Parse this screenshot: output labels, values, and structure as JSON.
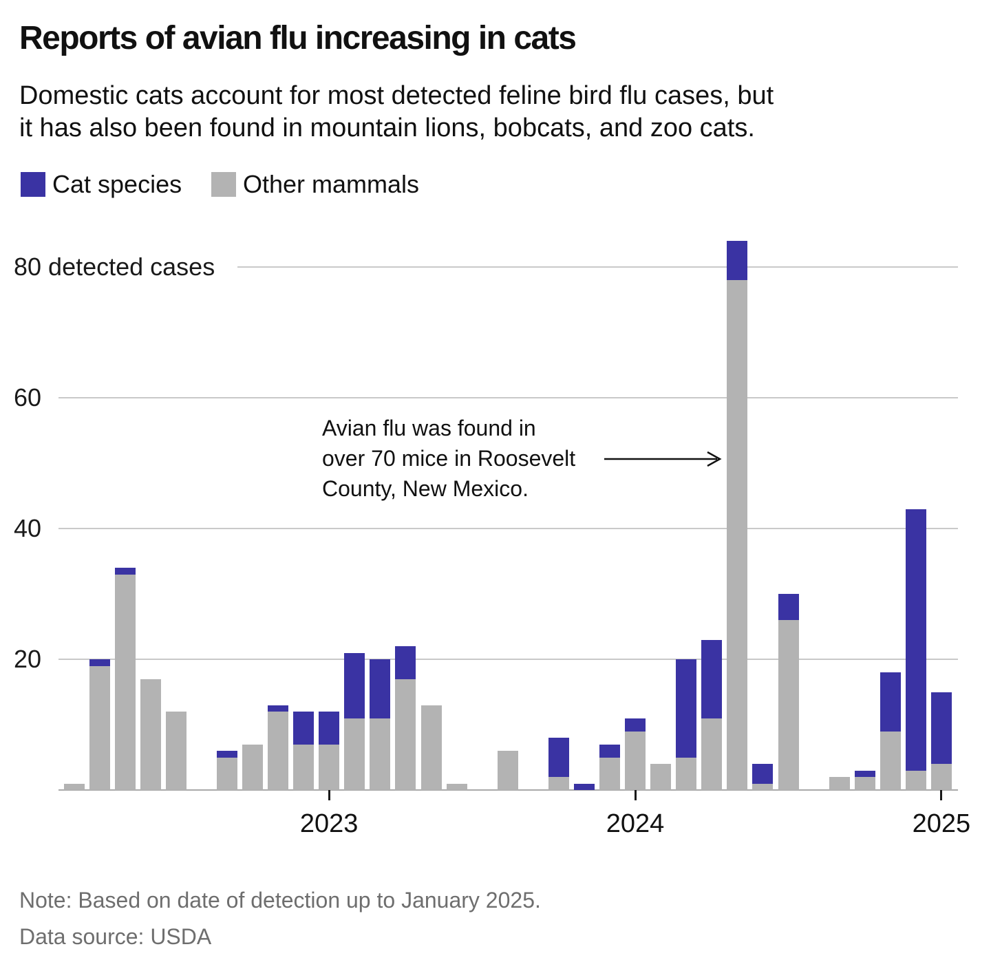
{
  "chart_data": {
    "type": "bar",
    "stacked": true,
    "title": "Reports of avian flu increasing in cats",
    "subtitle_lines": [
      "Domestic cats account for most detected feline bird flu cases, but",
      "it has also been found in mountain lions, bobcats, and zoo cats."
    ],
    "legend": [
      {
        "name": "Cat species",
        "color": "#3a33a3"
      },
      {
        "name": "Other mammals",
        "color": "#b3b3b3"
      }
    ],
    "x": [
      "2022-03",
      "2022-04",
      "2022-05",
      "2022-06",
      "2022-07",
      "2022-08",
      "2022-09",
      "2022-10",
      "2022-11",
      "2022-12",
      "2023-01",
      "2023-02",
      "2023-03",
      "2023-04",
      "2023-05",
      "2023-06",
      "2023-07",
      "2023-08",
      "2023-09",
      "2023-10",
      "2023-11",
      "2023-12",
      "2024-01",
      "2024-02",
      "2024-03",
      "2024-04",
      "2024-05",
      "2024-06",
      "2024-07",
      "2024-08",
      "2024-09",
      "2024-10",
      "2024-11",
      "2024-12",
      "2025-01"
    ],
    "series": [
      {
        "name": "Other mammals",
        "color": "#b3b3b3",
        "values": [
          1,
          19,
          33,
          17,
          12,
          0,
          5,
          7,
          12,
          7,
          7,
          11,
          11,
          17,
          13,
          1,
          0,
          6,
          0,
          2,
          0,
          5,
          9,
          4,
          5,
          11,
          78,
          1,
          26,
          0,
          2,
          2,
          9,
          3,
          4
        ]
      },
      {
        "name": "Cat species",
        "color": "#3a33a3",
        "values": [
          0,
          1,
          1,
          0,
          0,
          0,
          1,
          0,
          1,
          5,
          5,
          10,
          9,
          5,
          0,
          0,
          0,
          0,
          0,
          6,
          1,
          2,
          2,
          0,
          15,
          12,
          6,
          3,
          4,
          0,
          0,
          1,
          9,
          40,
          11
        ]
      }
    ],
    "stack_order": [
      "Other mammals",
      "Cat species"
    ],
    "y_axis": {
      "ticks": [
        20,
        40,
        60,
        80
      ],
      "top_tick_label": "80 detected cases",
      "ylim": [
        0,
        88
      ],
      "grid": true
    },
    "x_axis": {
      "year_ticks": [
        "2023",
        "2024",
        "2025"
      ],
      "granularity": "monthly"
    },
    "annotation": {
      "lines": [
        "Avian flu was found in",
        "over 70 mice in Roosevelt",
        "County, New Mexico."
      ],
      "points_to": "2024-05"
    },
    "legend_position": "top-left"
  },
  "footer": {
    "note": "Note: Based on date of detection up to January 2025.",
    "source": "Data source: USDA"
  }
}
